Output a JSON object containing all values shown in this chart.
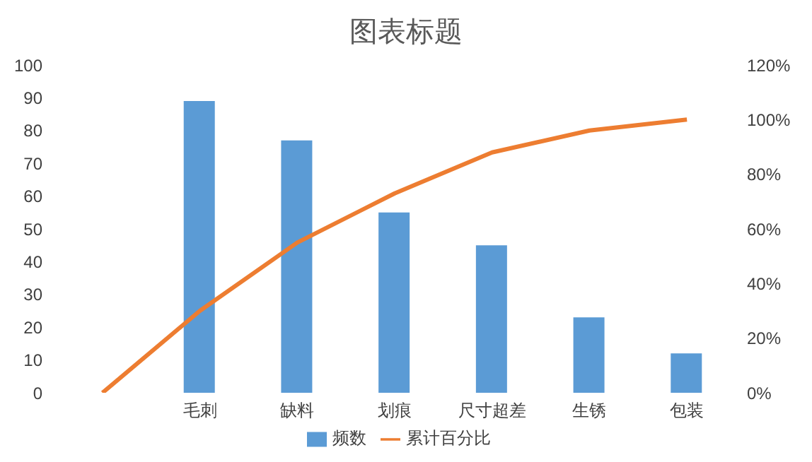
{
  "chart_data": {
    "type": "bar",
    "title": "图表标题",
    "categories": [
      null,
      "毛刺",
      "缺料",
      "划痕",
      "尺寸超差",
      "生锈",
      "包装"
    ],
    "series": [
      {
        "name": "频数",
        "color": "#5b9bd5",
        "values": [
          null,
          89,
          77,
          55,
          45,
          23,
          12
        ]
      },
      {
        "name": "累计百分比",
        "type": "line",
        "axis": "y2",
        "color": "#ed7d31",
        "values": [
          0,
          30,
          55,
          73,
          88,
          96,
          100
        ]
      }
    ],
    "ylim": [
      0,
      100
    ],
    "yticks": [
      0,
      10,
      20,
      30,
      40,
      50,
      60,
      70,
      80,
      90,
      100
    ],
    "y2lim": [
      0,
      120
    ],
    "y2ticks": [
      {
        "value": 0,
        "label": "0%"
      },
      {
        "value": 20,
        "label": "20%"
      },
      {
        "value": 40,
        "label": "40%"
      },
      {
        "value": 60,
        "label": "60%"
      },
      {
        "value": 80,
        "label": "80%"
      },
      {
        "value": 100,
        "label": "100%"
      },
      {
        "value": 120,
        "label": "120%"
      }
    ],
    "legend": "bottom",
    "marker": "none",
    "grid": false
  }
}
